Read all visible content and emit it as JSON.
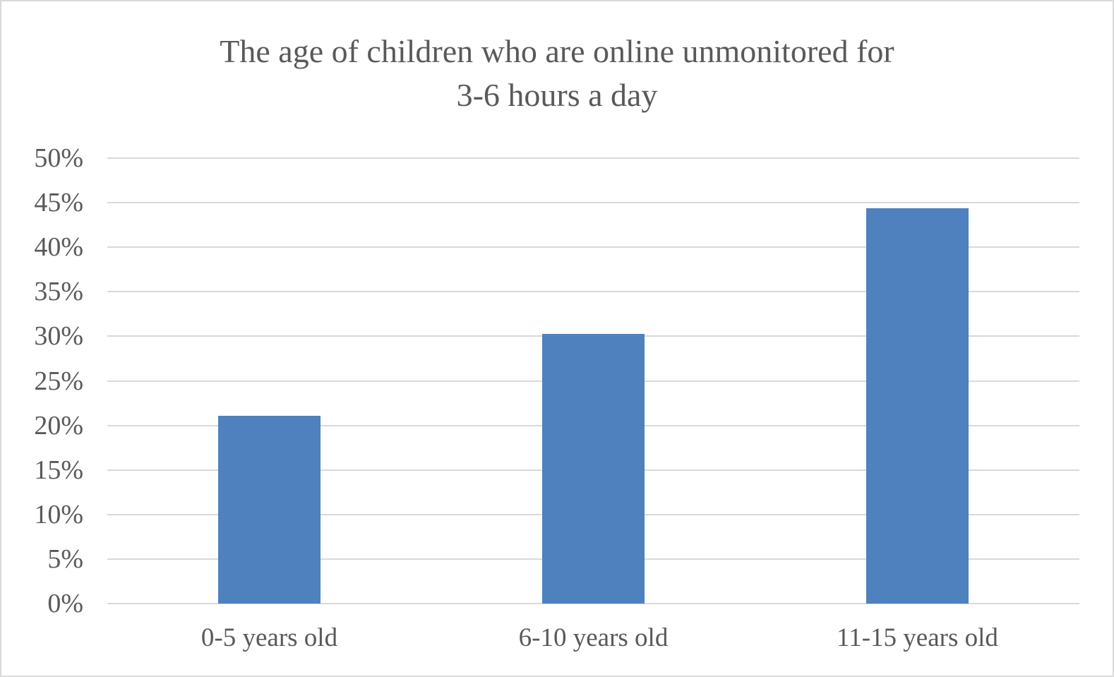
{
  "chart_data": {
    "type": "bar",
    "title": "The age of children who are online unmonitored for 3-6 hours a day",
    "title_lines": [
      "The age of children who are online unmonitored for",
      "3-6 hours a day"
    ],
    "categories": [
      "0-5 years old",
      "6-10 years old",
      "11-15 years old"
    ],
    "values": [
      21.1,
      30.3,
      44.4
    ],
    "xlabel": "",
    "ylabel": "",
    "y_axis": {
      "min": 0,
      "max": 50,
      "tick_step": 5,
      "tick_labels": [
        "0%",
        "5%",
        "10%",
        "15%",
        "20%",
        "25%",
        "30%",
        "35%",
        "40%",
        "45%",
        "50%"
      ]
    },
    "grid": true,
    "legend": false,
    "colors": {
      "bar": "#4E81BD",
      "gridline": "#D9D9D9",
      "axis_text": "#595959",
      "title_text": "#595959",
      "background": "#FFFFFF",
      "frame_border": "#D9D9D9"
    }
  }
}
